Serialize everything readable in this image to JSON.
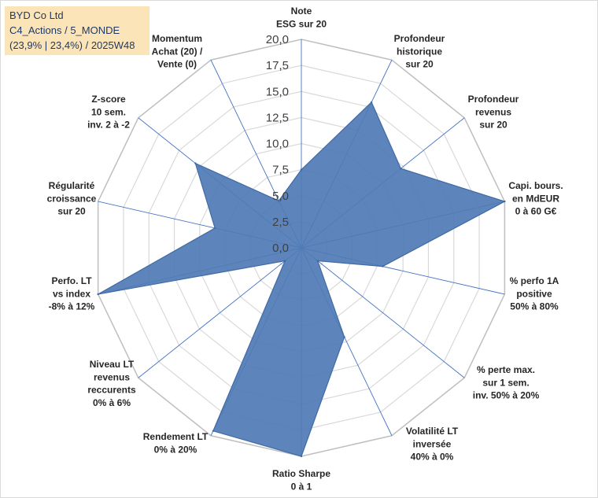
{
  "header": {
    "line1": "BYD Co Ltd",
    "line2": "C4_Actions / 5_MONDE",
    "line3": "(23,9% | 23,4%) / 2025W48"
  },
  "colors": {
    "fill": "#4f7bb5",
    "stroke": "#3f6aa5",
    "axis": "#4472c4",
    "grid": "#d9d9d9"
  },
  "chart_data": {
    "type": "radar",
    "title": "",
    "rmin": 0,
    "rmax": 20,
    "tick_labels": [
      "0,0",
      "2,5",
      "5,0",
      "7,5",
      "10,0",
      "12,5",
      "15,0",
      "17,5",
      "20,0"
    ],
    "axes": [
      {
        "label": [
          "Note",
          "ESG sur 20"
        ],
        "value": 7.5
      },
      {
        "label": [
          "Profondeur",
          "historique",
          "sur 20"
        ],
        "value": 15.5
      },
      {
        "label": [
          "Profondeur",
          "revenus",
          "sur 20"
        ],
        "value": 12.2
      },
      {
        "label": [
          "Capi. bours.",
          "en MdEUR",
          "0 à 60 G€"
        ],
        "value": 20.0
      },
      {
        "label": [
          "% perfo 1A",
          "positive",
          "50% à 80%"
        ],
        "value": 8.0
      },
      {
        "label": [
          "% perte max.",
          "sur 1 sem.",
          "inv. 50% à 20%"
        ],
        "value": 2.0
      },
      {
        "label": [
          "Volatilité LT",
          "inversée",
          "40% à 0%"
        ],
        "value": 9.5
      },
      {
        "label": [
          "Ratio Sharpe",
          "0 à 1"
        ],
        "value": 20.0
      },
      {
        "label": [
          "Rendement LT",
          "0% à 20%"
        ],
        "value": 19.5
      },
      {
        "label": [
          "Niveau LT",
          "revenus",
          "reccurents",
          "0% à 6%"
        ],
        "value": 2.0
      },
      {
        "label": [
          "Perfo. LT",
          "vs index",
          "-8% à 12%"
        ],
        "value": 20.0
      },
      {
        "label": [
          "Régularité",
          "croissance",
          "sur 20"
        ],
        "value": 8.5
      },
      {
        "label": [
          "Z-score",
          "10 sem.",
          "inv. 2 à -2"
        ],
        "value": 13.0
      },
      {
        "label": [
          "Momentum",
          "Achat (20) /",
          "Vente (0)"
        ],
        "value": 5.0
      }
    ]
  }
}
